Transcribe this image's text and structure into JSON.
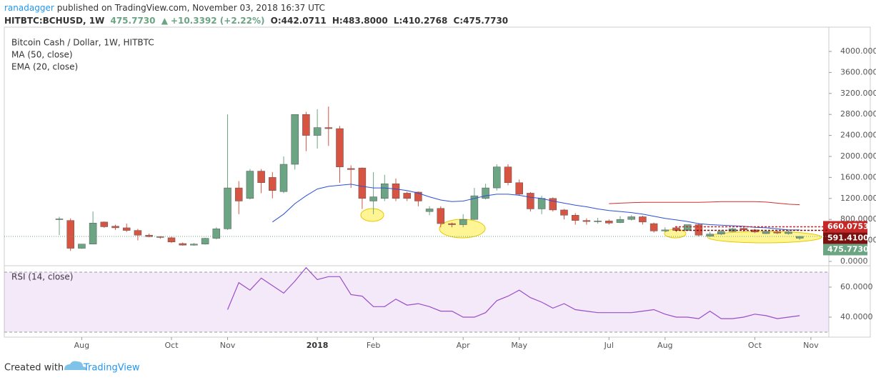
{
  "header": {
    "author": "ranadagger",
    "published": "published on TradingView.com, November 03, 2018 16:37 UTC",
    "symbol": "HITBTC:BCHUSD, 1W",
    "last": "475.7730",
    "change": "+10.3392 (+2.22%)",
    "open": "O:442.0711",
    "high": "H:483.8000",
    "low": "L:410.2768",
    "close": "C:475.7730"
  },
  "footer": {
    "created": "Created with",
    "brand": "TradingView"
  },
  "chart_data": [
    {
      "type": "candlestick",
      "title": "Bitcoin Cash / Dollar, 1W, HITBTC",
      "up_color": "#6ba583",
      "down_color": "#d75442",
      "open": [
        800,
        780,
        250,
        330,
        750,
        670,
        640,
        590,
        500,
        470,
        450,
        340,
        310,
        330,
        440,
        620,
        1400,
        1200,
        1720,
        1600,
        1330,
        1850,
        2800,
        2400,
        2550,
        2530,
        1770,
        1780,
        1150,
        1200,
        1480,
        1300,
        1320,
        950,
        1010,
        720,
        700,
        800,
        1200,
        1400,
        1800,
        1500,
        1300,
        1000,
        1200,
        980,
        880,
        780,
        760,
        770,
        740,
        800,
        850,
        720,
        580,
        640,
        590,
        700,
        480,
        520,
        570,
        630,
        600,
        530,
        560,
        530,
        442.0711
      ],
      "high": [
        850,
        820,
        330,
        950,
        760,
        700,
        720,
        620,
        530,
        480,
        470,
        360,
        350,
        450,
        650,
        2800,
        1530,
        1760,
        1760,
        1700,
        2000,
        2800,
        2850,
        2900,
        2950,
        2580,
        1830,
        1790,
        1700,
        1650,
        1580,
        1330,
        1330,
        1050,
        1050,
        740,
        900,
        1400,
        1480,
        1850,
        1850,
        1560,
        1320,
        1250,
        1220,
        1000,
        920,
        820,
        830,
        800,
        860,
        880,
        870,
        740,
        650,
        660,
        700,
        730,
        560,
        600,
        640,
        650,
        620,
        580,
        590,
        590,
        483.8
      ],
      "low": [
        500,
        200,
        240,
        330,
        640,
        600,
        560,
        400,
        460,
        430,
        350,
        300,
        300,
        320,
        420,
        600,
        900,
        1180,
        1300,
        1200,
        1300,
        1750,
        2100,
        2150,
        2200,
        1500,
        1400,
        1000,
        900,
        1150,
        1150,
        1150,
        1050,
        880,
        650,
        650,
        650,
        790,
        1180,
        1350,
        1450,
        1250,
        950,
        900,
        950,
        800,
        700,
        700,
        720,
        700,
        730,
        780,
        700,
        550,
        560,
        560,
        580,
        470,
        460,
        500,
        560,
        570,
        540,
        520,
        520,
        510,
        410.2768
      ],
      "close": [
        810,
        250,
        330,
        730,
        660,
        640,
        590,
        500,
        470,
        460,
        370,
        310,
        330,
        440,
        620,
        1400,
        1150,
        1720,
        1500,
        1350,
        1850,
        2800,
        2400,
        2550,
        2530,
        1800,
        1750,
        1200,
        1230,
        1480,
        1200,
        1200,
        1150,
        1000,
        720,
        700,
        800,
        1250,
        1400,
        1800,
        1500,
        1280,
        1000,
        1200,
        980,
        880,
        780,
        760,
        770,
        730,
        800,
        850,
        750,
        580,
        600,
        590,
        700,
        500,
        520,
        570,
        620,
        600,
        560,
        570,
        540,
        560,
        475.773
      ],
      "overlays": [
        {
          "name": "MA (50, close)",
          "color": "#d32f2f",
          "values": [
            null,
            null,
            null,
            null,
            null,
            null,
            null,
            null,
            null,
            null,
            null,
            null,
            null,
            null,
            null,
            null,
            null,
            null,
            null,
            null,
            null,
            null,
            null,
            null,
            null,
            null,
            null,
            null,
            null,
            null,
            null,
            null,
            null,
            null,
            null,
            null,
            null,
            null,
            null,
            null,
            null,
            null,
            null,
            null,
            null,
            null,
            null,
            null,
            null,
            1100,
            1110,
            1120,
            1125,
            1125,
            1125,
            1125,
            1125,
            1125,
            1130,
            1140,
            1140,
            1140,
            1140,
            1130,
            1110,
            1090,
            1080
          ]
        },
        {
          "name": "EMA (20, close)",
          "color": "#2b50d6",
          "values": [
            null,
            null,
            null,
            null,
            null,
            null,
            null,
            null,
            null,
            null,
            null,
            null,
            null,
            null,
            null,
            null,
            null,
            null,
            null,
            750,
            900,
            1100,
            1250,
            1380,
            1430,
            1450,
            1470,
            1430,
            1400,
            1400,
            1380,
            1350,
            1300,
            1230,
            1170,
            1140,
            1150,
            1200,
            1250,
            1280,
            1280,
            1260,
            1220,
            1200,
            1150,
            1110,
            1070,
            1040,
            1000,
            970,
            950,
            930,
            900,
            860,
            820,
            790,
            760,
            720,
            700,
            690,
            680,
            670,
            650,
            640,
            620,
            600,
            600
          ]
        }
      ],
      "price_labels": [
        {
          "value": 660.0753,
          "label": "660.0753",
          "color": "#c62828"
        },
        {
          "value": 591.41,
          "label": "591.4100",
          "color": "#7b1010"
        },
        {
          "value": 475.773,
          "label": "475.7730",
          "color": "#6ba583"
        }
      ],
      "ylim": [
        -55,
        4463
      ],
      "yticks": [
        {
          "value": 0,
          "label": "0.0000"
        },
        {
          "value": 400,
          "label": "400.0000"
        },
        {
          "value": 800,
          "label": "800.0000"
        },
        {
          "value": 1200,
          "label": "1200.0000"
        },
        {
          "value": 1600,
          "label": "1600.0000"
        },
        {
          "value": 2000,
          "label": "2000.0000"
        },
        {
          "value": 2400,
          "label": "2400.0000"
        },
        {
          "value": 2800,
          "label": "2800.0000"
        },
        {
          "value": 3200,
          "label": "3200.0000"
        },
        {
          "value": 3600,
          "label": "3600.0000"
        },
        {
          "value": 4000,
          "label": "4000.0000"
        }
      ],
      "xticks": [
        {
          "value": 2,
          "label": "Aug"
        },
        {
          "value": 10,
          "label": "Oct"
        },
        {
          "value": 15,
          "label": "Nov"
        },
        {
          "value": 23,
          "label": "2018"
        },
        {
          "value": 28,
          "label": "Feb"
        },
        {
          "value": 36,
          "label": "Apr"
        },
        {
          "value": 41,
          "label": "May"
        },
        {
          "value": 49,
          "label": "Jul"
        },
        {
          "value": 54,
          "label": "Aug"
        },
        {
          "value": 62,
          "label": "Oct"
        },
        {
          "value": 67,
          "label": "Nov"
        }
      ]
    },
    {
      "type": "line",
      "title": "RSI (14, close)",
      "color": "#9b4dca",
      "band": [
        30,
        70
      ],
      "values": [
        null,
        null,
        null,
        null,
        null,
        null,
        null,
        null,
        null,
        null,
        null,
        null,
        null,
        null,
        null,
        45,
        63,
        58,
        66,
        61,
        56,
        64,
        73,
        65,
        67,
        67,
        55,
        54,
        47,
        47,
        52,
        48,
        49,
        47,
        44,
        44,
        40,
        40,
        43,
        51,
        54,
        58,
        53,
        50,
        46,
        49,
        45,
        44,
        43,
        43,
        43,
        43,
        44,
        45,
        42,
        40,
        40,
        39,
        44,
        39,
        39,
        40,
        42,
        41,
        39,
        40,
        41
      ],
      "ylim": [
        27.6,
        74.3
      ],
      "yticks": [
        {
          "value": 40,
          "label": "40.0000"
        },
        {
          "value": 60,
          "label": "60.0000"
        }
      ]
    }
  ]
}
